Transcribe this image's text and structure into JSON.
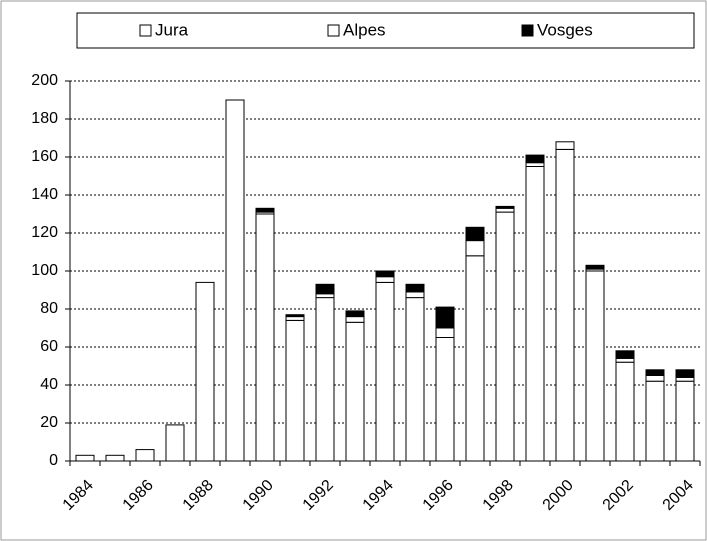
{
  "chart_data": {
    "type": "stacked_bar",
    "categories": [
      "1984",
      null,
      "1986",
      null,
      "1988",
      null,
      "1990",
      null,
      "1992",
      null,
      "1994",
      null,
      "1996",
      null,
      "1998",
      null,
      "2000",
      null,
      "2002",
      null,
      "2004"
    ],
    "series": [
      {
        "name": "Jura",
        "color": "#ffffff",
        "values": [
          3,
          3,
          6,
          19,
          94,
          190,
          130,
          74,
          86,
          73,
          94,
          86,
          65,
          108,
          131,
          155,
          164,
          100,
          52,
          42,
          42
        ]
      },
      {
        "name": "Alpes",
        "color": "#ffffff",
        "values": [
          0,
          0,
          0,
          0,
          0,
          0,
          1,
          2,
          2,
          3,
          3,
          3,
          5,
          8,
          2,
          2,
          4,
          1,
          2,
          3,
          2
        ]
      },
      {
        "name": "Vosges",
        "color": "#000000",
        "values": [
          0,
          0,
          0,
          0,
          0,
          0,
          2,
          1,
          5,
          3,
          3,
          4,
          11,
          7,
          1,
          4,
          0,
          2,
          4,
          3,
          4
        ]
      }
    ],
    "ylim": [
      0,
      200
    ],
    "yticks": [
      0,
      20,
      40,
      60,
      80,
      100,
      120,
      140,
      160,
      180,
      200
    ],
    "grid": true,
    "legend": "top"
  }
}
